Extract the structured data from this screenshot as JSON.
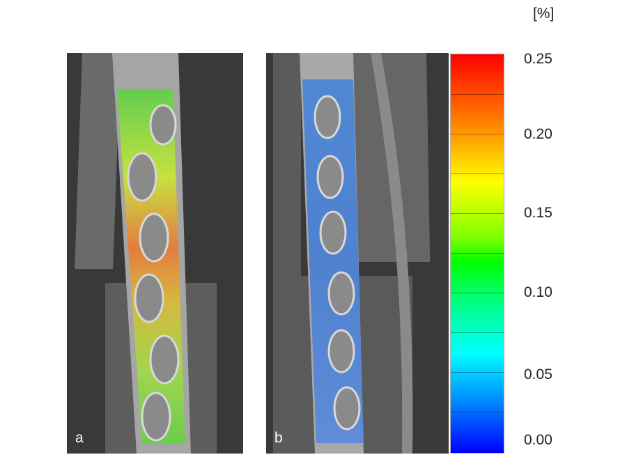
{
  "unit": "[%]",
  "scale_ticks": [
    "0.25",
    "0.20",
    "0.15",
    "0.10",
    "0.05",
    "0.00"
  ],
  "panels": [
    {
      "label": "a",
      "strain_map": "high strain (green-yellow-red)"
    },
    {
      "label": "b",
      "strain_map": "low strain (blue)"
    }
  ],
  "colors": {
    "scale_top": "#ff0000",
    "scale_mid": "#00ff00",
    "scale_bottom": "#0000ff",
    "background": "#3a3a3a"
  }
}
